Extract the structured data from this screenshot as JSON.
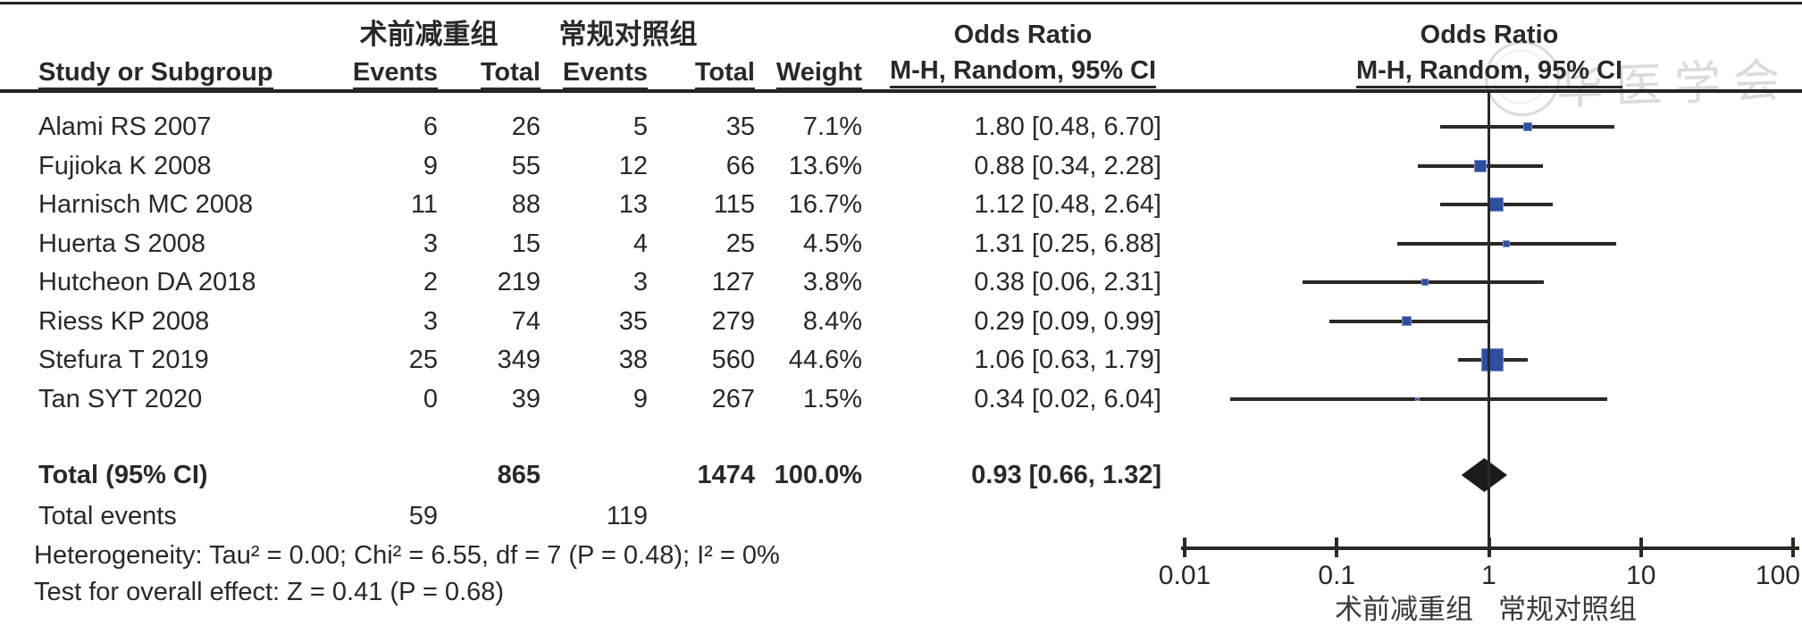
{
  "columns": {
    "study": "Study or Subgroup",
    "events": "Events",
    "total": "Total",
    "weight": "Weight"
  },
  "or_header": {
    "line1": "Odds Ratio",
    "line2": "M-H, Random, 95% CI"
  },
  "footnotes": {
    "heterogeneity": "Heterogeneity: Tau² = 0.00; Chi² = 6.55, df = 7 (P = 0.48); I² = 0%",
    "overall_effect": "Test for overall effect: Z = 0.41 (P = 0.68)"
  },
  "watermark": {
    "glyphs": "华医学会",
    "color": "#dbdbdb"
  },
  "colors": {
    "marker_blue": "#2d4fa2",
    "diamond_black": "#1d1a18",
    "line": "#2b2826",
    "text": "#2b2826",
    "watermark": "#dbdbdb"
  },
  "chart_data": {
    "type": "scatter",
    "subtype": "forest_plot_meta_analysis",
    "effect_measure": "Odds Ratio",
    "model": "M-H, Random, 95% CI",
    "x_scale": "log",
    "x_range": [
      0.01,
      100
    ],
    "x_ticks": [
      "0.01",
      "0.1",
      "1",
      "10",
      "100"
    ],
    "null_line_value": 1,
    "grid": false,
    "group_labels": {
      "experimental": "术前减重组",
      "control": "常规对照组"
    },
    "studies": [
      {
        "name": "Alami RS 2007",
        "events1": 6,
        "total1": 26,
        "events2": 5,
        "total2": 35,
        "weight": "7.1%",
        "weight_pct": 7.1,
        "or": 1.8,
        "ci_low": 0.48,
        "ci_high": 6.7,
        "ci_text": "1.80 [0.48, 6.70]"
      },
      {
        "name": "Fujioka K 2008",
        "events1": 9,
        "total1": 55,
        "events2": 12,
        "total2": 66,
        "weight": "13.6%",
        "weight_pct": 13.6,
        "or": 0.88,
        "ci_low": 0.34,
        "ci_high": 2.28,
        "ci_text": "0.88 [0.34, 2.28]"
      },
      {
        "name": "Harnisch MC 2008",
        "events1": 11,
        "total1": 88,
        "events2": 13,
        "total2": 115,
        "weight": "16.7%",
        "weight_pct": 16.7,
        "or": 1.12,
        "ci_low": 0.48,
        "ci_high": 2.64,
        "ci_text": "1.12 [0.48, 2.64]"
      },
      {
        "name": "Huerta S 2008",
        "events1": 3,
        "total1": 15,
        "events2": 4,
        "total2": 25,
        "weight": "4.5%",
        "weight_pct": 4.5,
        "or": 1.31,
        "ci_low": 0.25,
        "ci_high": 6.88,
        "ci_text": "1.31 [0.25, 6.88]"
      },
      {
        "name": "Hutcheon DA 2018",
        "events1": 2,
        "total1": 219,
        "events2": 3,
        "total2": 127,
        "weight": "3.8%",
        "weight_pct": 3.8,
        "or": 0.38,
        "ci_low": 0.06,
        "ci_high": 2.31,
        "ci_text": "0.38 [0.06, 2.31]"
      },
      {
        "name": "Riess KP 2008",
        "events1": 3,
        "total1": 74,
        "events2": 35,
        "total2": 279,
        "weight": "8.4%",
        "weight_pct": 8.4,
        "or": 0.29,
        "ci_low": 0.09,
        "ci_high": 0.99,
        "ci_text": "0.29 [0.09, 0.99]"
      },
      {
        "name": "Stefura T 2019",
        "events1": 25,
        "total1": 349,
        "events2": 38,
        "total2": 560,
        "weight": "44.6%",
        "weight_pct": 44.6,
        "or": 1.06,
        "ci_low": 0.63,
        "ci_high": 1.79,
        "ci_text": "1.06 [0.63, 1.79]"
      },
      {
        "name": "Tan SYT 2020",
        "events1": 0,
        "total1": 39,
        "events2": 9,
        "total2": 267,
        "weight": "1.5%",
        "weight_pct": 1.5,
        "or": 0.34,
        "ci_low": 0.02,
        "ci_high": 6.04,
        "ci_text": "0.34 [0.02, 6.04]"
      }
    ],
    "total": {
      "label": "Total (95% CI)",
      "total1": 865,
      "total2": 1474,
      "weight": "100.0%",
      "or": 0.93,
      "ci_low": 0.66,
      "ci_high": 1.32,
      "ci_text": "0.93 [0.66, 1.32]"
    },
    "total_events": {
      "label": "Total events",
      "events1": 59,
      "events2": 119
    }
  }
}
